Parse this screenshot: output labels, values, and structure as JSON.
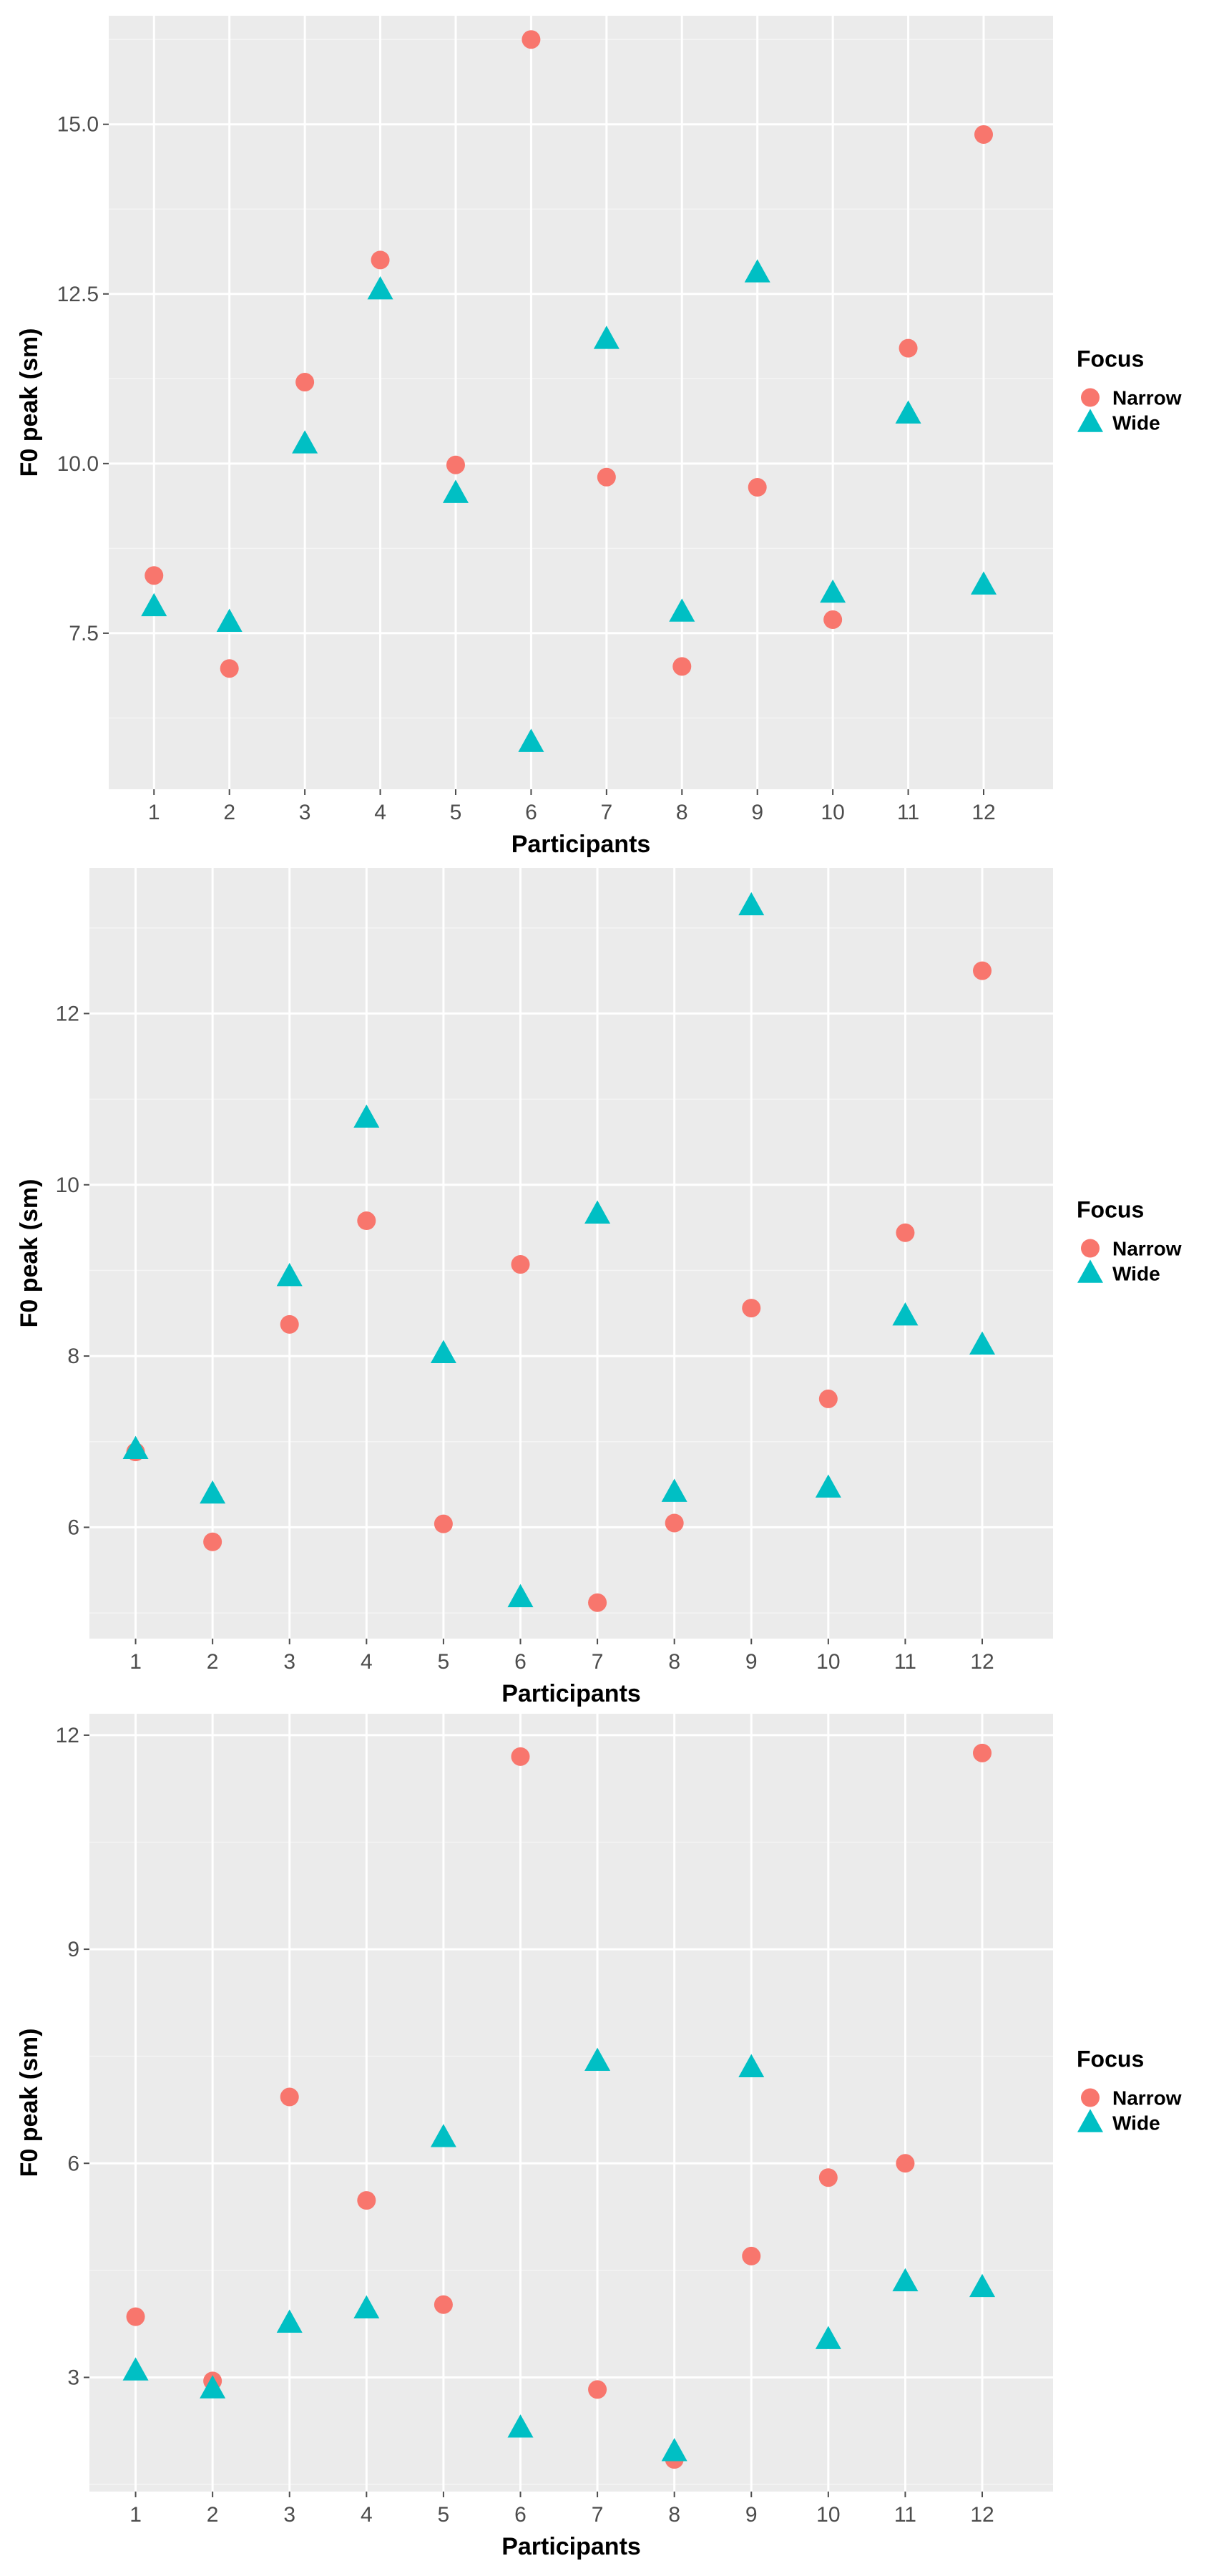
{
  "colors": {
    "panel_bg": "#EBEBEB",
    "grid_major": "#FFFFFF",
    "grid_minor": "#F4F4F4",
    "tick": "#4D4D4D",
    "narrow": "#F8766D",
    "wide": "#00BFC4"
  },
  "chart_data": [
    {
      "type": "scatter",
      "xlabel": "Participants",
      "ylabel": "F0 peak (sm)",
      "categories": [
        "1",
        "2",
        "3",
        "4",
        "5",
        "6",
        "7",
        "8",
        "9",
        "10",
        "11",
        "12"
      ],
      "ylim": [
        5.2,
        16.6
      ],
      "yticks": [
        7.5,
        10.0,
        12.5,
        15.0
      ],
      "ytick_labels": [
        "7.5",
        "10.0",
        "12.5",
        "15.0"
      ],
      "grid": true,
      "legend": {
        "title": "Focus",
        "position": "right",
        "entries": [
          "Narrow",
          "Wide"
        ]
      },
      "series": [
        {
          "name": "Narrow",
          "marker": "circle",
          "values": [
            8.35,
            6.98,
            11.2,
            13.0,
            9.98,
            16.25,
            9.8,
            7.01,
            9.65,
            7.7,
            11.7,
            14.85
          ]
        },
        {
          "name": "Wide",
          "marker": "triangle",
          "values": [
            7.88,
            7.65,
            10.28,
            12.55,
            9.55,
            5.88,
            11.82,
            7.8,
            12.8,
            8.08,
            10.72,
            8.2
          ]
        }
      ]
    },
    {
      "type": "scatter",
      "xlabel": "Participants",
      "ylabel": "F0 peak (sm)",
      "categories": [
        "1",
        "2",
        "3",
        "4",
        "5",
        "6",
        "7",
        "8",
        "9",
        "10",
        "11",
        "12"
      ],
      "ylim": [
        4.7,
        13.7
      ],
      "yticks": [
        6,
        8,
        10,
        12
      ],
      "ytick_labels": [
        "6",
        "8",
        "10",
        "12"
      ],
      "grid": true,
      "legend": {
        "title": "Focus",
        "position": "right",
        "entries": [
          "Narrow",
          "Wide"
        ]
      },
      "series": [
        {
          "name": "Narrow",
          "marker": "circle",
          "values": [
            6.88,
            5.83,
            8.37,
            9.58,
            6.04,
            9.07,
            5.12,
            6.05,
            8.56,
            7.5,
            9.44,
            12.5
          ]
        },
        {
          "name": "Wide",
          "marker": "triangle",
          "values": [
            6.9,
            6.38,
            8.92,
            10.77,
            8.02,
            5.17,
            9.65,
            6.4,
            13.25,
            6.45,
            8.46,
            8.12
          ]
        }
      ]
    },
    {
      "type": "scatter",
      "xlabel": "Participants",
      "ylabel": "F0 peak (sm)",
      "categories": [
        "1",
        "2",
        "3",
        "4",
        "5",
        "6",
        "7",
        "8",
        "9",
        "10",
        "11",
        "12"
      ],
      "ylim": [
        1.4,
        12.3
      ],
      "yticks": [
        3,
        6,
        9,
        12
      ],
      "ytick_labels": [
        "3",
        "6",
        "9",
        "12"
      ],
      "grid": true,
      "legend": {
        "title": "Focus",
        "position": "right",
        "entries": [
          "Narrow",
          "Wide"
        ]
      },
      "series": [
        {
          "name": "Narrow",
          "marker": "circle",
          "values": [
            3.85,
            2.95,
            6.93,
            5.48,
            4.02,
            11.7,
            2.83,
            1.85,
            4.7,
            5.8,
            6.0,
            11.75
          ]
        },
        {
          "name": "Wide",
          "marker": "triangle",
          "values": [
            3.08,
            2.83,
            3.75,
            3.95,
            6.35,
            2.28,
            7.42,
            1.95,
            7.33,
            3.52,
            4.33,
            4.25
          ]
        }
      ]
    }
  ]
}
